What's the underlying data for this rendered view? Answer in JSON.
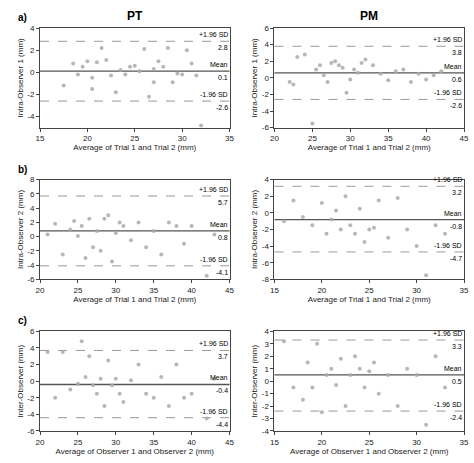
{
  "chart_data": [
    {
      "type": "scatter",
      "title": "PT",
      "panel_label": "a)",
      "x_label": "Average of Trial 1 and Trial 2 (mm)",
      "y_label": "Intra-Observer 1 (mm)",
      "xlim": [
        15,
        35
      ],
      "xticks": [
        15,
        20,
        25,
        30,
        35
      ],
      "ylim": [
        -5,
        4
      ],
      "yticks": [
        -4,
        -2,
        0,
        2,
        4
      ],
      "grid": false,
      "color": "#aaaaaa",
      "marker": "circle",
      "x": [
        17.5,
        18.5,
        19.0,
        19.5,
        20.0,
        20.5,
        20.5,
        21.0,
        21.5,
        22.0,
        22.5,
        23.0,
        23.5,
        24.0,
        24.5,
        25.0,
        25.5,
        26.0,
        26.5,
        27.0,
        27.0,
        27.5,
        28.0,
        28.5,
        29.0,
        29.5,
        30.0,
        30.5,
        31.0,
        31.5,
        32.0
      ],
      "values": [
        -1.2,
        0.8,
        -0.2,
        0.5,
        1.0,
        -0.5,
        -1.5,
        0.9,
        2.2,
        1.1,
        -0.3,
        -1.8,
        0.2,
        -0.2,
        0.5,
        0.6,
        0.1,
        2.1,
        -2.2,
        0.3,
        -0.9,
        1.0,
        0.5,
        2.2,
        -0.9,
        -0.1,
        -0.2,
        2.0,
        0.8,
        -0.3,
        -4.8
      ],
      "reference_lines": [
        {
          "name": "+1.96 SD",
          "value": 2.8,
          "label": "2.8",
          "color": "#999999",
          "line_style": "dashed"
        },
        {
          "name": "Mean",
          "value": 0.1,
          "label": "0.1",
          "color": "#555555",
          "line_style": "solid"
        },
        {
          "name": "-1.96 SD",
          "value": -2.6,
          "label": "-2.6",
          "color": "#999999",
          "line_style": "dashed"
        }
      ]
    },
    {
      "type": "scatter",
      "title": "PM",
      "x_label": "Average of Trial 1 and Trial 2 (mm)",
      "y_label": "Intra-Observer 1 (mm)",
      "xlim": [
        20,
        45
      ],
      "xticks": [
        20,
        25,
        30,
        35,
        40,
        45
      ],
      "ylim": [
        -6,
        6
      ],
      "yticks": [
        -6,
        -4,
        -2,
        0,
        2,
        4,
        6
      ],
      "grid": false,
      "color": "#aaaaaa",
      "marker": "circle",
      "x": [
        22.0,
        23.0,
        24.0,
        25.0,
        25.5,
        26.0,
        26.5,
        27.0,
        27.5,
        28.0,
        28.5,
        29.0,
        29.5,
        30.0,
        30.5,
        31.0,
        31.5,
        32.0,
        33.0,
        34.0,
        35.0,
        36.0,
        37.0,
        38.0,
        39.0,
        40.0,
        41.0,
        42.0,
        22.5
      ],
      "values": [
        -0.5,
        2.5,
        2.8,
        -5.5,
        1.0,
        1.5,
        0.3,
        -0.5,
        1.8,
        2.0,
        1.5,
        1.2,
        -1.8,
        -0.2,
        1.0,
        0.6,
        1.8,
        2.2,
        1.5,
        0.5,
        -0.3,
        0.8,
        1.0,
        -0.5,
        0.5,
        -0.2,
        0.3,
        0.8,
        -0.8
      ],
      "reference_lines": [
        {
          "name": "+1.96 SD",
          "value": 3.8,
          "label": "3.8",
          "color": "#999999",
          "line_style": "dashed"
        },
        {
          "name": "Mean",
          "value": 0.6,
          "label": "0.6",
          "color": "#555555",
          "line_style": "solid"
        },
        {
          "name": "-1.96 SD",
          "value": -2.6,
          "label": "-2.6",
          "color": "#999999",
          "line_style": "dashed"
        }
      ]
    },
    {
      "type": "scatter",
      "panel_label": "b)",
      "x_label": "Average of Trial 1 and Trial 2 (mm)",
      "y_label": "Intra-Observer 2 (mm)",
      "xlim": [
        20,
        45
      ],
      "xticks": [
        20,
        25,
        30,
        35,
        40,
        45
      ],
      "ylim": [
        -6,
        8
      ],
      "yticks": [
        -6,
        -4,
        -2,
        0,
        2,
        4,
        6,
        8
      ],
      "grid": false,
      "color": "#aaaaaa",
      "marker": "circle",
      "x": [
        21.0,
        22.0,
        23.0,
        24.0,
        24.5,
        25.0,
        25.5,
        26.0,
        26.5,
        27.0,
        27.5,
        28.0,
        28.5,
        29.0,
        29.5,
        30.0,
        30.5,
        31.0,
        32.0,
        33.0,
        34.0,
        35.0,
        36.0,
        37.0,
        38.0,
        39.0,
        40.0,
        42.0,
        43.0
      ],
      "values": [
        0.3,
        1.8,
        -2.5,
        1.0,
        2.2,
        0.1,
        1.5,
        -3.0,
        2.5,
        -1.5,
        0.8,
        -2.0,
        2.5,
        3.0,
        -3.5,
        0.5,
        2.0,
        1.5,
        -0.5,
        2.0,
        -1.5,
        0.8,
        -2.5,
        2.0,
        1.5,
        -1.0,
        1.5,
        -5.5,
        0.3
      ],
      "reference_lines": [
        {
          "name": "+1.96 SD",
          "value": 5.7,
          "label": "5.7",
          "color": "#999999",
          "line_style": "dashed"
        },
        {
          "name": "Mean",
          "value": 0.8,
          "label": "0.8",
          "color": "#555555",
          "line_style": "solid"
        },
        {
          "name": "-1.96 SD",
          "value": -4.1,
          "label": "-4.1",
          "color": "#999999",
          "line_style": "dashed"
        }
      ]
    },
    {
      "type": "scatter",
      "x_label": "Average of Trial 1 and Trial 2 (mm)",
      "y_label": "Intra-Observer 2 (mm)",
      "xlim": [
        15,
        35
      ],
      "xticks": [
        15,
        20,
        25,
        30,
        35
      ],
      "ylim": [
        -8,
        4
      ],
      "yticks": [
        -8,
        -6,
        -4,
        -2,
        0,
        2,
        4
      ],
      "grid": false,
      "color": "#aaaaaa",
      "marker": "circle",
      "x": [
        16.0,
        17.0,
        18.0,
        19.0,
        20.0,
        20.5,
        21.0,
        21.5,
        22.0,
        22.5,
        23.0,
        23.5,
        24.0,
        24.5,
        25.0,
        25.5,
        26.0,
        27.0,
        28.0,
        29.0,
        30.0,
        31.0,
        32.0,
        33.0
      ],
      "values": [
        -1.0,
        1.5,
        -0.5,
        -1.5,
        1.2,
        -2.5,
        -0.8,
        0.3,
        -2.0,
        2.0,
        -1.5,
        -2.5,
        0.5,
        -3.5,
        -2.0,
        -1.8,
        1.5,
        -3.0,
        1.8,
        -2.0,
        -4.0,
        -7.5,
        -1.5,
        -2.5
      ],
      "reference_lines": [
        {
          "name": "+1.96 SD",
          "value": 3.2,
          "label": "3.2",
          "color": "#999999",
          "line_style": "dashed"
        },
        {
          "name": "Mean",
          "value": -0.8,
          "label": "-0.8",
          "color": "#555555",
          "line_style": "solid"
        },
        {
          "name": "-1.96 SD",
          "value": -4.7,
          "label": "-4.7",
          "color": "#999999",
          "line_style": "dashed"
        }
      ]
    },
    {
      "type": "scatter",
      "panel_label": "c)",
      "x_label": "Average of Observer 1 and Observer 2 (mm)",
      "y_label": "Inter-Observer (mm)",
      "xlim": [
        20,
        45
      ],
      "xticks": [
        20,
        25,
        30,
        35,
        40,
        45
      ],
      "ylim": [
        -6,
        6
      ],
      "yticks": [
        -6,
        -4,
        -2,
        0,
        2,
        4,
        6
      ],
      "grid": false,
      "color": "#aaaaaa",
      "marker": "circle",
      "x": [
        21.0,
        22.0,
        23.0,
        24.0,
        25.0,
        25.5,
        26.0,
        26.5,
        27.0,
        27.5,
        28.0,
        28.5,
        29.0,
        29.5,
        30.0,
        30.5,
        31.0,
        32.0,
        33.0,
        34.0,
        35.0,
        36.0,
        37.0,
        38.0,
        39.0,
        40.0,
        42.0,
        43.0
      ],
      "values": [
        3.5,
        -2.0,
        3.5,
        -1.0,
        -0.3,
        4.8,
        0.5,
        3.0,
        -0.5,
        -1.5,
        0.3,
        -3.0,
        2.5,
        -0.5,
        0.3,
        -1.5,
        -2.5,
        0.1,
        2.0,
        -1.5,
        -2.0,
        0.5,
        -3.0,
        2.0,
        -2.0,
        -1.5,
        -4.5,
        0.3
      ],
      "reference_lines": [
        {
          "name": "+1.96 SD",
          "value": 3.7,
          "label": "3.7",
          "color": "#999999",
          "line_style": "dashed"
        },
        {
          "name": "Mean",
          "value": -0.4,
          "label": "-0.4",
          "color": "#555555",
          "line_style": "solid"
        },
        {
          "name": "-1.96 SD",
          "value": -4.4,
          "label": "-4.4",
          "color": "#999999",
          "line_style": "dashed"
        }
      ]
    },
    {
      "type": "scatter",
      "x_label": "Average of Observer 1 and Observer 2 (mm)",
      "y_label": "Inter-Observer (mm)",
      "xlim": [
        15,
        35
      ],
      "xticks": [
        15,
        20,
        25,
        30,
        35
      ],
      "ylim": [
        -4,
        4
      ],
      "yticks": [
        -4,
        -3,
        -2,
        -1,
        0,
        1,
        2,
        3,
        4
      ],
      "grid": false,
      "color": "#aaaaaa",
      "marker": "circle",
      "x": [
        16.0,
        17.0,
        18.0,
        18.5,
        19.0,
        19.5,
        20.0,
        20.5,
        21.0,
        21.5,
        22.0,
        22.5,
        23.0,
        23.5,
        24.0,
        24.5,
        25.0,
        25.5,
        26.0,
        27.0,
        28.0,
        29.0,
        30.0,
        31.0,
        32.0,
        33.0
      ],
      "values": [
        3.2,
        -0.5,
        -1.5,
        1.5,
        -0.5,
        3.0,
        -2.5,
        0.5,
        1.0,
        -0.3,
        1.8,
        -2.0,
        0.5,
        2.0,
        1.0,
        -0.5,
        0.8,
        1.5,
        -1.0,
        0.5,
        -2.0,
        1.0,
        0.5,
        -3.5,
        2.0,
        -0.5
      ],
      "reference_lines": [
        {
          "name": "+1.96 SD",
          "value": 3.3,
          "label": "3.3",
          "color": "#999999",
          "line_style": "dashed"
        },
        {
          "name": "Mean",
          "value": 0.5,
          "label": "0.5",
          "color": "#555555",
          "line_style": "solid"
        },
        {
          "name": "-1.96 SD",
          "value": -2.4,
          "label": "-2.4",
          "color": "#999999",
          "line_style": "dashed"
        }
      ]
    }
  ]
}
